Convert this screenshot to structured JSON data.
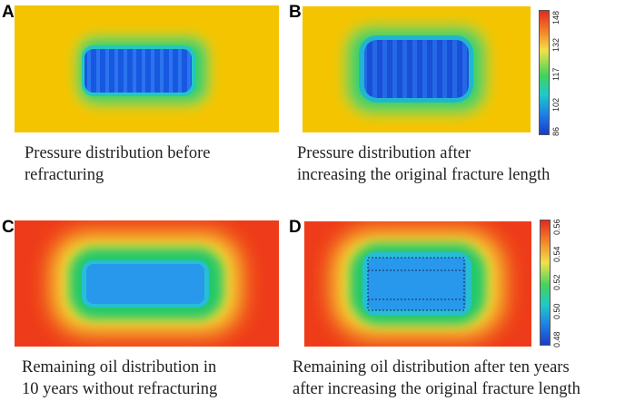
{
  "panels": [
    {
      "letter": "A",
      "caption_line1": "Pressure distribution before",
      "caption_line2": "refracturing"
    },
    {
      "letter": "B",
      "caption_line1": "Pressure distribution after",
      "caption_line2": "increasing the original fracture length"
    },
    {
      "letter": "C",
      "caption_line1": "Remaining oil distribution in",
      "caption_line2": "10 years without refracturing"
    },
    {
      "letter": "D",
      "caption_line1": "Remaining oil distribution after ten years",
      "caption_line2": "after increasing the original fracture length"
    }
  ],
  "colorbar_pressure": {
    "ticks": [
      "86",
      "102",
      "117",
      "132",
      "148"
    ]
  },
  "colorbar_oil": {
    "ticks": [
      "0.48",
      "0.50",
      "0.52",
      "0.54",
      "0.56"
    ]
  },
  "colors": {
    "background_high": "#f5c400",
    "oil_background": "#ee3b1a",
    "low": "#1a7be0"
  }
}
